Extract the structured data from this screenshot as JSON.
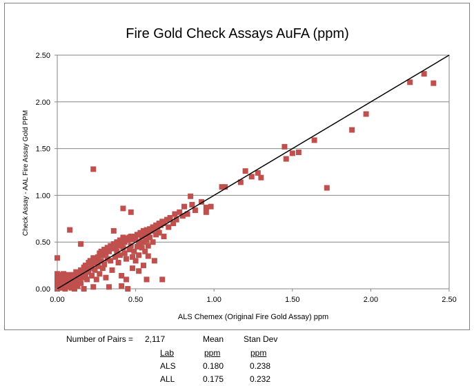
{
  "chart_data": {
    "type": "scatter",
    "title": "Fire Gold Check Assays AuFA (ppm)",
    "xlabel": "ALS Chemex (Original Fire Gold Assay) ppm",
    "ylabel": "Check Assay - AAL Fire Assay Gold PPM",
    "xlim": [
      0,
      2.5
    ],
    "ylim": [
      0,
      2.5
    ],
    "x_ticks": [
      "0.00",
      "0.50",
      "1.00",
      "1.50",
      "2.00",
      "2.50"
    ],
    "y_ticks": [
      "0.00",
      "0.50",
      "1.00",
      "1.50",
      "2.00",
      "2.50"
    ],
    "grid": "horizontal",
    "marker_color": "#c0504d",
    "line_color": "#000000",
    "reference_line": {
      "x": [
        0,
        2.5
      ],
      "y": [
        0,
        2.5
      ]
    },
    "series": [
      {
        "points": [
          [
            0.0,
            0.33
          ],
          [
            0.0,
            0.16
          ],
          [
            0.0,
            0.12
          ],
          [
            0.0,
            0.08
          ],
          [
            0.0,
            0.04
          ],
          [
            0.0,
            0.02
          ],
          [
            0.0,
            0.0
          ],
          [
            0.01,
            0.11
          ],
          [
            0.01,
            0.07
          ],
          [
            0.01,
            0.01
          ],
          [
            0.02,
            0.15
          ],
          [
            0.02,
            0.09
          ],
          [
            0.02,
            0.04
          ],
          [
            0.03,
            0.13
          ],
          [
            0.03,
            0.06
          ],
          [
            0.03,
            0.01
          ],
          [
            0.04,
            0.16
          ],
          [
            0.04,
            0.1
          ],
          [
            0.04,
            0.03
          ],
          [
            0.05,
            0.14
          ],
          [
            0.05,
            0.08
          ],
          [
            0.05,
            0.0
          ],
          [
            0.06,
            0.11
          ],
          [
            0.06,
            0.05
          ],
          [
            0.07,
            0.15
          ],
          [
            0.07,
            0.02
          ],
          [
            0.08,
            0.12
          ],
          [
            0.08,
            0.07
          ],
          [
            0.09,
            0.1
          ],
          [
            0.09,
            0.01
          ],
          [
            0.1,
            0.15
          ],
          [
            0.1,
            0.05
          ],
          [
            0.11,
            0.12
          ],
          [
            0.11,
            0.0
          ],
          [
            0.12,
            0.18
          ],
          [
            0.12,
            0.08
          ],
          [
            0.13,
            0.14
          ],
          [
            0.13,
            0.03
          ],
          [
            0.14,
            0.16
          ],
          [
            0.14,
            0.1
          ],
          [
            0.15,
            0.2
          ],
          [
            0.15,
            0.06
          ],
          [
            0.16,
            0.18
          ],
          [
            0.16,
            0.12
          ],
          [
            0.17,
            0.23
          ],
          [
            0.17,
            0.0
          ],
          [
            0.18,
            0.25
          ],
          [
            0.18,
            0.15
          ],
          [
            0.19,
            0.2
          ],
          [
            0.19,
            0.1
          ],
          [
            0.2,
            0.28
          ],
          [
            0.2,
            0.18
          ],
          [
            0.21,
            0.3
          ],
          [
            0.21,
            0.22
          ],
          [
            0.22,
            0.26
          ],
          [
            0.22,
            0.14
          ],
          [
            0.23,
            0.33
          ],
          [
            0.23,
            0.02
          ],
          [
            0.24,
            0.28
          ],
          [
            0.24,
            0.2
          ],
          [
            0.25,
            0.3
          ],
          [
            0.25,
            0.1
          ],
          [
            0.26,
            0.34
          ],
          [
            0.26,
            0.24
          ],
          [
            0.27,
            0.38
          ],
          [
            0.27,
            0.16
          ],
          [
            0.28,
            0.4
          ],
          [
            0.28,
            0.3
          ],
          [
            0.29,
            0.36
          ],
          [
            0.29,
            0.22
          ],
          [
            0.3,
            0.42
          ],
          [
            0.3,
            0.26
          ],
          [
            0.31,
            0.38
          ],
          [
            0.31,
            0.12
          ],
          [
            0.32,
            0.44
          ],
          [
            0.32,
            0.32
          ],
          [
            0.33,
            0.4
          ],
          [
            0.33,
            0.02
          ],
          [
            0.34,
            0.46
          ],
          [
            0.34,
            0.3
          ],
          [
            0.35,
            0.43
          ],
          [
            0.35,
            0.2
          ],
          [
            0.36,
            0.62
          ],
          [
            0.36,
            0.48
          ],
          [
            0.37,
            0.45
          ],
          [
            0.37,
            0.34
          ],
          [
            0.38,
            0.5
          ],
          [
            0.38,
            0.4
          ],
          [
            0.39,
            0.46
          ],
          [
            0.39,
            0.28
          ],
          [
            0.4,
            0.52
          ],
          [
            0.4,
            0.36
          ],
          [
            0.41,
            0.48
          ],
          [
            0.41,
            0.14
          ],
          [
            0.42,
            0.55
          ],
          [
            0.42,
            0.44
          ],
          [
            0.43,
            0.5
          ],
          [
            0.43,
            0.38
          ],
          [
            0.44,
            0.54
          ],
          [
            0.44,
            0.32
          ],
          [
            0.45,
            0.52
          ],
          [
            0.45,
            0.0
          ],
          [
            0.46,
            0.55
          ],
          [
            0.46,
            0.42
          ],
          [
            0.47,
            0.56
          ],
          [
            0.47,
            0.46
          ],
          [
            0.48,
            0.53
          ],
          [
            0.48,
            0.34
          ],
          [
            0.49,
            0.56
          ],
          [
            0.49,
            0.4
          ],
          [
            0.5,
            0.54
          ],
          [
            0.5,
            0.3
          ],
          [
            0.51,
            0.58
          ],
          [
            0.51,
            0.45
          ],
          [
            0.52,
            0.5
          ],
          [
            0.52,
            0.36
          ],
          [
            0.53,
            0.6
          ],
          [
            0.53,
            0.48
          ],
          [
            0.54,
            0.56
          ],
          [
            0.54,
            0.44
          ],
          [
            0.55,
            0.62
          ],
          [
            0.55,
            0.5
          ],
          [
            0.56,
            0.58
          ],
          [
            0.56,
            0.4
          ],
          [
            0.57,
            0.63
          ],
          [
            0.57,
            0.52
          ],
          [
            0.58,
            0.6
          ],
          [
            0.58,
            0.46
          ],
          [
            0.59,
            0.64
          ],
          [
            0.59,
            0.55
          ],
          [
            0.6,
            0.62
          ],
          [
            0.61,
            0.66
          ],
          [
            0.61,
            0.5
          ],
          [
            0.62,
            0.64
          ],
          [
            0.63,
            0.68
          ],
          [
            0.63,
            0.58
          ],
          [
            0.64,
            0.66
          ],
          [
            0.65,
            0.7
          ],
          [
            0.65,
            0.6
          ],
          [
            0.66,
            0.68
          ],
          [
            0.67,
            0.72
          ],
          [
            0.68,
            0.7
          ],
          [
            0.68,
            0.56
          ],
          [
            0.7,
            0.74
          ],
          [
            0.71,
            0.66
          ],
          [
            0.72,
            0.76
          ],
          [
            0.74,
            0.7
          ],
          [
            0.75,
            0.8
          ],
          [
            0.76,
            0.74
          ],
          [
            0.78,
            0.82
          ],
          [
            0.8,
            0.78
          ],
          [
            0.81,
            0.88
          ],
          [
            0.83,
            0.8
          ],
          [
            0.85,
            0.99
          ],
          [
            0.86,
            0.9
          ],
          [
            0.88,
            0.84
          ],
          [
            0.92,
            0.93
          ],
          [
            0.95,
            0.87
          ],
          [
            0.95,
            0.82
          ],
          [
            0.98,
            0.88
          ],
          [
            1.05,
            1.09
          ],
          [
            1.07,
            1.09
          ],
          [
            1.17,
            1.14
          ],
          [
            1.2,
            1.26
          ],
          [
            1.24,
            1.2
          ],
          [
            1.28,
            1.24
          ],
          [
            1.3,
            1.19
          ],
          [
            1.45,
            1.52
          ],
          [
            1.46,
            1.39
          ],
          [
            1.5,
            1.45
          ],
          [
            1.54,
            1.46
          ],
          [
            1.64,
            1.59
          ],
          [
            1.72,
            1.08
          ],
          [
            1.88,
            1.7
          ],
          [
            1.97,
            1.87
          ],
          [
            2.25,
            2.21
          ],
          [
            2.34,
            2.3
          ],
          [
            2.4,
            2.2
          ],
          [
            0.23,
            1.28
          ],
          [
            0.08,
            0.63
          ],
          [
            0.15,
            0.48
          ],
          [
            0.42,
            0.86
          ],
          [
            0.47,
            0.82
          ],
          [
            0.52,
            0.19
          ],
          [
            0.57,
            0.1
          ],
          [
            0.67,
            0.1
          ],
          [
            0.41,
            0.03
          ],
          [
            0.62,
            0.3
          ],
          [
            0.58,
            0.35
          ],
          [
            0.48,
            0.22
          ],
          [
            0.55,
            0.25
          ],
          [
            0.44,
            0.1
          ]
        ]
      }
    ],
    "stats_table": {
      "pairs_label": "Number of Pairs =",
      "pairs_value": "2,117",
      "mean_header": "Mean",
      "stdev_header": "Stan Dev",
      "lab_header": "Lab",
      "unit_header": "ppm",
      "rows": [
        {
          "lab": "ALS",
          "mean": "0.180",
          "stdev": "0.238"
        },
        {
          "lab": "ALL",
          "mean": "0.175",
          "stdev": "0.232"
        }
      ]
    }
  }
}
